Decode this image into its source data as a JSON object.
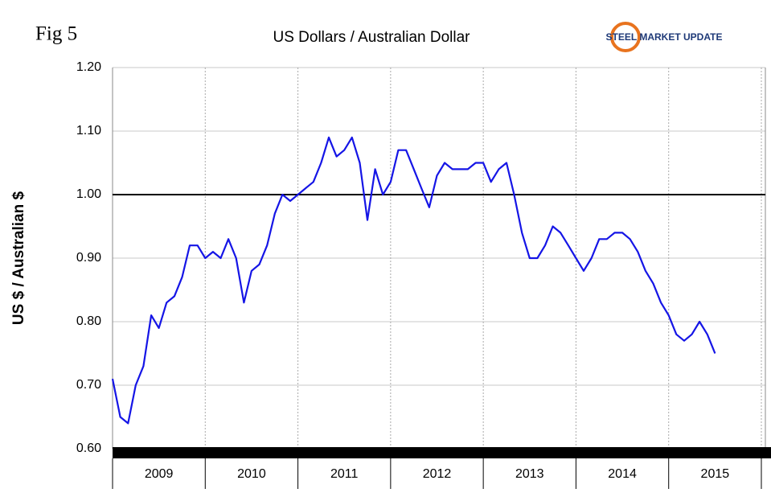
{
  "chart_data": {
    "type": "line",
    "figure_label": "Fig 5",
    "title": "US Dollars  / Australian Dollar",
    "logo_text": "STEEL MARKET UPDATE",
    "y_label": "US $ / Australian $",
    "categories": [
      "2009",
      "2010",
      "2011",
      "2012",
      "2013",
      "2014",
      "2015"
    ],
    "xlim": [
      2009,
      2016
    ],
    "xticks": [
      2009,
      2010,
      2011,
      2012,
      2013,
      2014,
      2015,
      2016
    ],
    "ylim": [
      0.6,
      1.2
    ],
    "yticks": [
      {
        "value": 0.6,
        "label": "0.60"
      },
      {
        "value": 0.7,
        "label": "0.70"
      },
      {
        "value": 0.8,
        "label": "0.80"
      },
      {
        "value": 0.9,
        "label": "0.90"
      },
      {
        "value": 1.0,
        "label": "1.00"
      },
      {
        "value": 1.1,
        "label": "1.10"
      },
      {
        "value": 1.2,
        "label": "1.20"
      }
    ],
    "reference_line": 1.0,
    "grid": true,
    "series": [
      {
        "color": "#1515e6",
        "x": [
          2009,
          2009.083,
          2009.167,
          2009.25,
          2009.333,
          2009.417,
          2009.5,
          2009.583,
          2009.667,
          2009.75,
          2009.833,
          2009.917,
          2010,
          2010.083,
          2010.167,
          2010.25,
          2010.333,
          2010.417,
          2010.5,
          2010.583,
          2010.667,
          2010.75,
          2010.833,
          2010.917,
          2011,
          2011.083,
          2011.167,
          2011.25,
          2011.333,
          2011.417,
          2011.5,
          2011.583,
          2011.667,
          2011.75,
          2011.833,
          2011.917,
          2012,
          2012.083,
          2012.167,
          2012.25,
          2012.333,
          2012.417,
          2012.5,
          2012.583,
          2012.667,
          2012.75,
          2012.833,
          2012.917,
          2013,
          2013.083,
          2013.167,
          2013.25,
          2013.333,
          2013.417,
          2013.5,
          2013.583,
          2013.667,
          2013.75,
          2013.833,
          2013.917,
          2014,
          2014.083,
          2014.167,
          2014.25,
          2014.333,
          2014.417,
          2014.5,
          2014.583,
          2014.667,
          2014.75,
          2014.833,
          2014.917,
          2015,
          2015.083,
          2015.167,
          2015.25,
          2015.333,
          2015.417,
          2015.5
        ],
        "values": [
          0.71,
          0.65,
          0.64,
          0.7,
          0.73,
          0.81,
          0.79,
          0.83,
          0.84,
          0.87,
          0.92,
          0.92,
          0.9,
          0.91,
          0.9,
          0.93,
          0.9,
          0.83,
          0.88,
          0.89,
          0.92,
          0.97,
          1.0,
          0.99,
          1.0,
          1.01,
          1.02,
          1.05,
          1.09,
          1.06,
          1.07,
          1.09,
          1.05,
          0.96,
          1.04,
          1.0,
          1.02,
          1.07,
          1.07,
          1.04,
          1.01,
          0.98,
          1.03,
          1.05,
          1.04,
          1.04,
          1.04,
          1.05,
          1.05,
          1.02,
          1.04,
          1.05,
          1.0,
          0.94,
          0.9,
          0.9,
          0.92,
          0.95,
          0.94,
          0.92,
          0.9,
          0.88,
          0.9,
          0.93,
          0.93,
          0.94,
          0.94,
          0.93,
          0.91,
          0.88,
          0.86,
          0.83,
          0.81,
          0.78,
          0.77,
          0.78,
          0.8,
          0.78,
          0.75
        ]
      }
    ]
  }
}
